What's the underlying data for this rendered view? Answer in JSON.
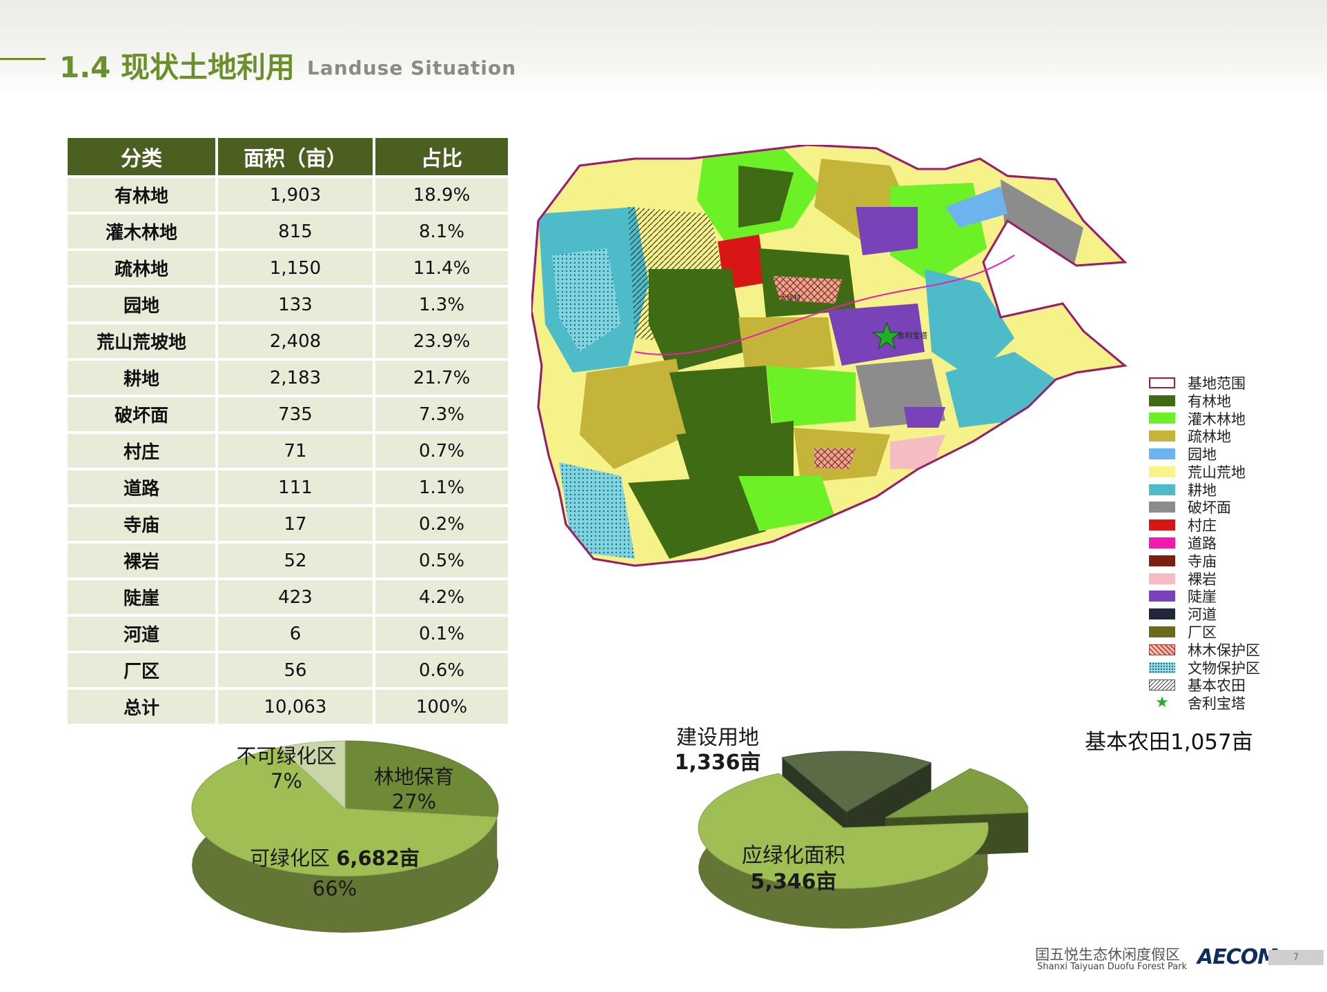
{
  "header": {
    "title_cn": "1.4 现状土地利用",
    "title_en": "Landuse Situation"
  },
  "table": {
    "headers": [
      "分类",
      "面积（亩）",
      "占比"
    ],
    "rows": [
      [
        "有林地",
        "1,903",
        "18.9%"
      ],
      [
        "灌木林地",
        "815",
        "8.1%"
      ],
      [
        "疏林地",
        "1,150",
        "11.4%"
      ],
      [
        "园地",
        "133",
        "1.3%"
      ],
      [
        "荒山荒坡地",
        "2,408",
        "23.9%"
      ],
      [
        "耕地",
        "2,183",
        "21.7%"
      ],
      [
        "破坏面",
        "735",
        "7.3%"
      ],
      [
        "村庄",
        "71",
        "0.7%"
      ],
      [
        "道路",
        "111",
        "1.1%"
      ],
      [
        "寺庙",
        "17",
        "0.2%"
      ],
      [
        "裸岩",
        "52",
        "0.5%"
      ],
      [
        "陡崖",
        "423",
        "4.2%"
      ],
      [
        "河道",
        "6",
        "0.1%"
      ],
      [
        "厂区",
        "56",
        "0.6%"
      ],
      [
        "总计",
        "10,063",
        "100%"
      ]
    ]
  },
  "map": {
    "labels": {
      "temple": "舍利宝塔",
      "village": "大班村"
    },
    "legend": [
      {
        "label": "基地范围",
        "color": "#ffffff",
        "style": "outline"
      },
      {
        "label": "有林地",
        "color": "#3f6b14",
        "style": "fill"
      },
      {
        "label": "灌木林地",
        "color": "#6cf026",
        "style": "fill"
      },
      {
        "label": "疏林地",
        "color": "#c4b43a",
        "style": "fill"
      },
      {
        "label": "园地",
        "color": "#6db4ef",
        "style": "fill"
      },
      {
        "label": "荒山荒地",
        "color": "#f8f48a",
        "style": "fill"
      },
      {
        "label": "耕地",
        "color": "#4ebcc8",
        "style": "fill"
      },
      {
        "label": "破坏面",
        "color": "#8c8c8c",
        "style": "fill"
      },
      {
        "label": "村庄",
        "color": "#d81616",
        "style": "fill"
      },
      {
        "label": "道路",
        "color": "#f01ab0",
        "style": "fill"
      },
      {
        "label": "寺庙",
        "color": "#7a1e10",
        "style": "fill"
      },
      {
        "label": "裸岩",
        "color": "#f6bcc4",
        "style": "fill"
      },
      {
        "label": "陡崖",
        "color": "#7a42b8",
        "style": "fill"
      },
      {
        "label": "河道",
        "color": "#22263a",
        "style": "fill"
      },
      {
        "label": "厂区",
        "color": "#6a6a1e",
        "style": "fill"
      },
      {
        "label": "林木保护区",
        "color": "#c84a3a",
        "style": "cross"
      },
      {
        "label": "文物保护区",
        "color": "#4ec0d4",
        "style": "dots"
      },
      {
        "label": "基本农田",
        "color": "#555555",
        "style": "hatch"
      },
      {
        "label": "舍利宝塔",
        "color": "#22b022",
        "style": "star"
      }
    ]
  },
  "chart_data": [
    {
      "type": "pie",
      "slices": [
        {
          "name": "林地保育",
          "value": 27,
          "label_pct": "27%",
          "color": "#6f8a37"
        },
        {
          "name": "可绿化区",
          "value": 66,
          "label_pct": "66%",
          "label_area": "6,682亩",
          "color": "#9fbf55"
        },
        {
          "name": "不可绿化区",
          "value": 7,
          "label_pct": "7%",
          "color": "#c9d7a8"
        }
      ]
    },
    {
      "type": "pie",
      "slices": [
        {
          "name": "应绿化面积",
          "value": 5346,
          "label_area": "5,346亩",
          "color": "#9fbf55"
        },
        {
          "name": "建设用地",
          "value": 1336,
          "label_area": "1,336亩",
          "color": "#5a6b45"
        },
        {
          "name": "基本农田",
          "value": 1057,
          "label_full": "基本农田1,057亩",
          "color": "#7f9e42"
        }
      ]
    }
  ],
  "footer": {
    "cn": "囯五悦生态休闲度假区",
    "en": "Shanxi Taiyuan Duofu Forest Park",
    "brand": "AECOM",
    "page": "7"
  }
}
